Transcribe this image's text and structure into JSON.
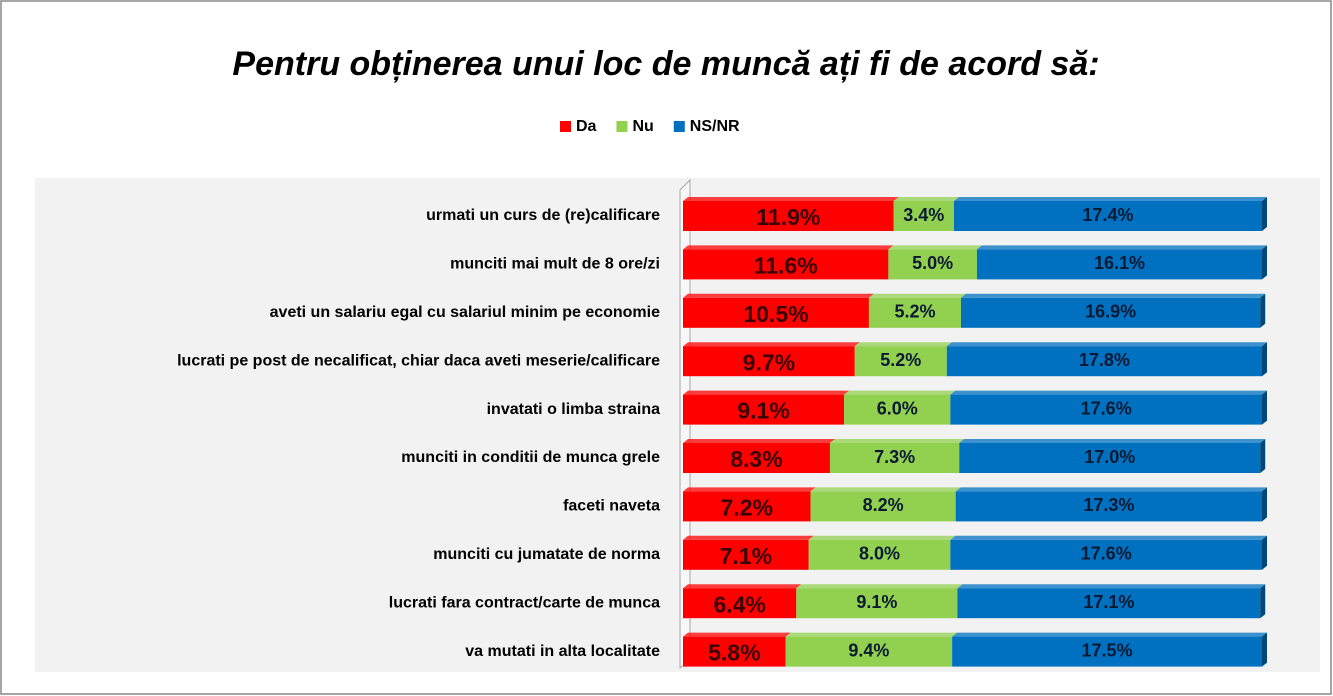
{
  "chart_data": {
    "type": "stacked-bar-horizontal",
    "title": "Pentru obținerea unui loc de muncă ați fi de acord să:",
    "legend": "top",
    "categories": [
      "urmati un curs de (re)calificare",
      "munciti mai mult de 8 ore/zi",
      "aveti un salariu egal cu salariul minim pe economie",
      "lucrati pe post de necalificat, chiar daca aveti meserie/calificare",
      "invatati o limba straina",
      "munciti in conditii de munca grele",
      "faceti naveta",
      "munciti cu jumatate de norma",
      "lucrati fara contract/carte de munca",
      "va mutati in alta localitate"
    ],
    "series": [
      {
        "name": "Da",
        "color": "#ff0000",
        "values": [
          11.9,
          11.6,
          10.5,
          9.7,
          9.1,
          8.3,
          7.2,
          7.1,
          6.4,
          5.8
        ],
        "value_labels": [
          "11.9%",
          "11.6%",
          "10.5%",
          "9.7%",
          "9.1%",
          "8.3%",
          "7.2%",
          "7.1%",
          "6.4%",
          "5.8%"
        ]
      },
      {
        "name": "Nu",
        "color": "#92d050",
        "values": [
          3.4,
          5.0,
          5.2,
          5.2,
          6.0,
          7.3,
          8.2,
          8.0,
          9.1,
          9.4
        ],
        "value_labels": [
          "3.4%",
          "5.0%",
          "5.2%",
          "5.2%",
          "6.0%",
          "7.3%",
          "8.2%",
          "8.0%",
          "9.1%",
          "9.4%"
        ]
      },
      {
        "name": "NS/NR",
        "color": "#0070c0",
        "values": [
          17.4,
          16.1,
          16.9,
          17.8,
          17.6,
          17.0,
          17.3,
          17.6,
          17.1,
          17.5
        ],
        "value_labels": [
          "17.4%",
          "16.1%",
          "16.9%",
          "17.8%",
          "17.6%",
          "17.0%",
          "17.3%",
          "17.6%",
          "17.1%",
          "17.5%"
        ]
      }
    ]
  }
}
